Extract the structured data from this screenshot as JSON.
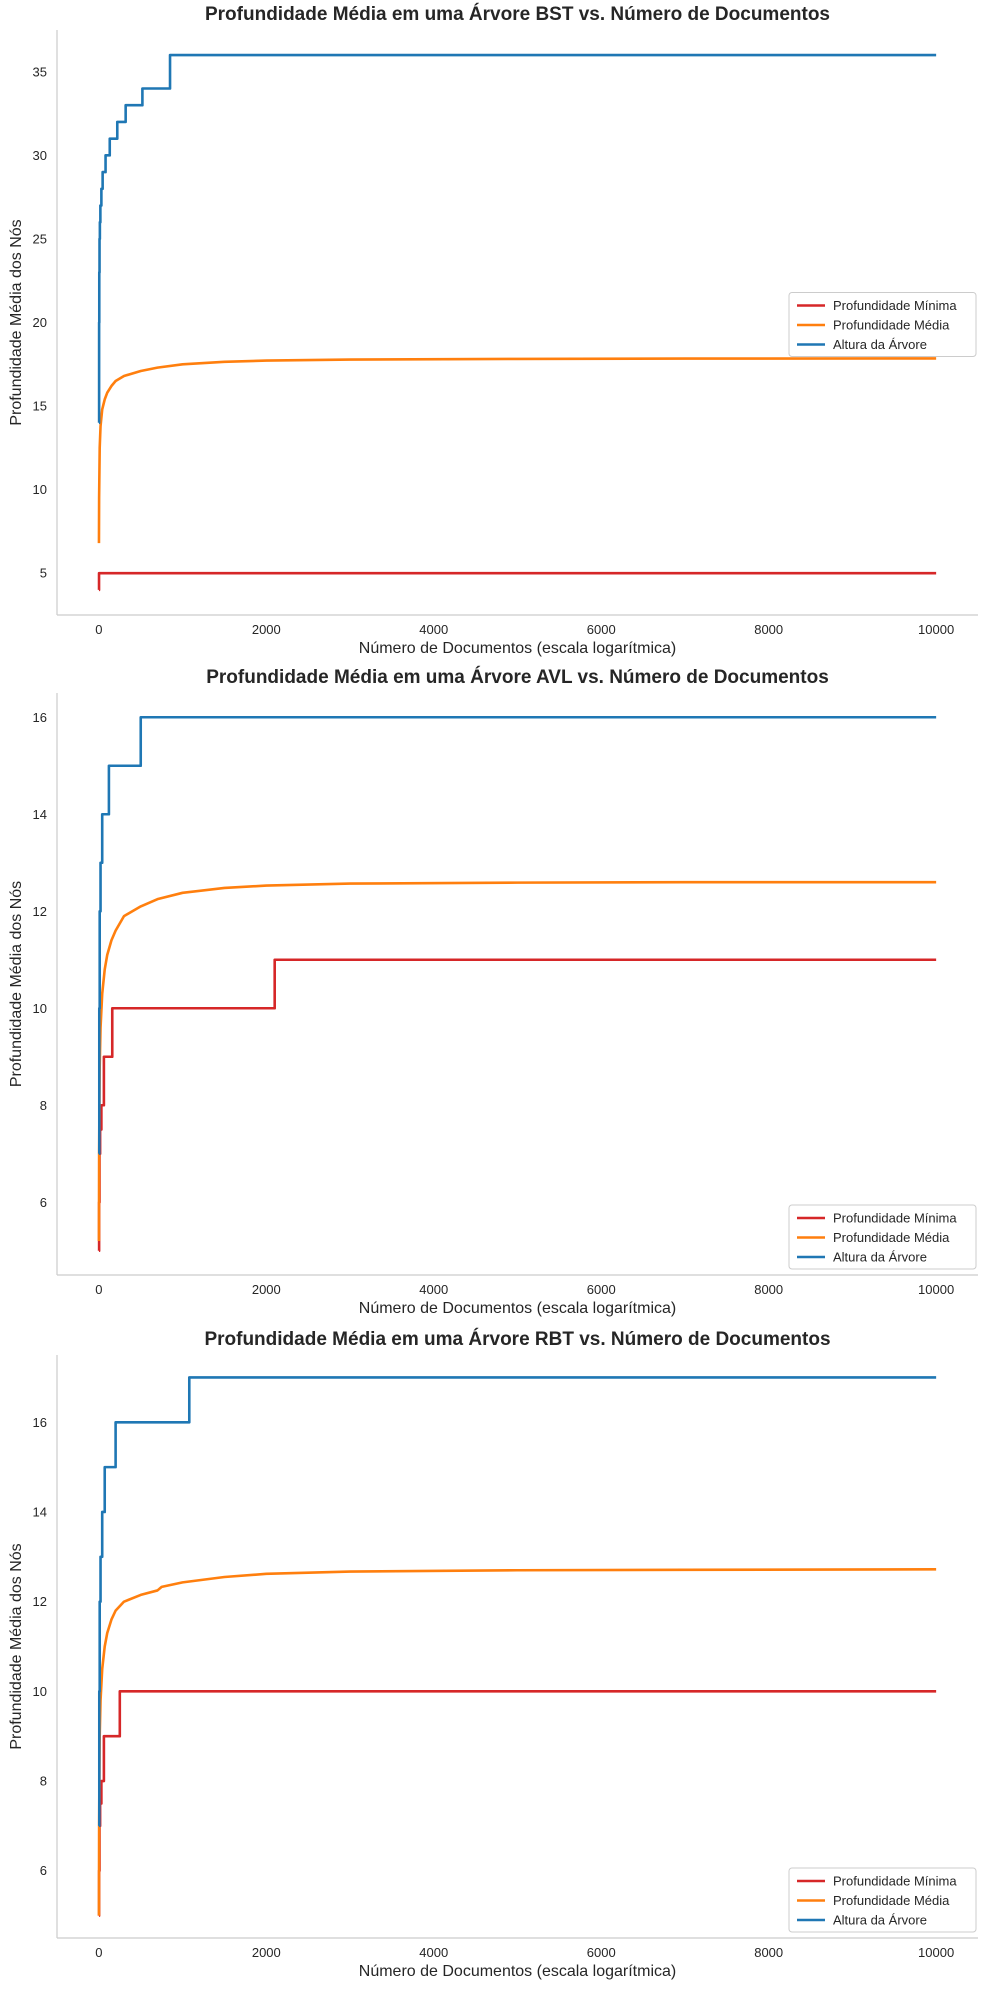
{
  "chart_data": [
    {
      "type": "line",
      "title": "Profundidade Média em uma Árvore BST vs. Número de Documentos",
      "xlabel": "Número de Documentos (escala logarítmica)",
      "ylabel": "Profundidade Média dos Nós",
      "xlim": [
        -500,
        10500
      ],
      "ylim": [
        2.5,
        37.5
      ],
      "xticks": [
        0,
        2000,
        4000,
        6000,
        8000,
        10000
      ],
      "yticks": [
        5,
        10,
        15,
        20,
        25,
        30,
        35
      ],
      "grid": false,
      "legend_position": "center-right",
      "series": [
        {
          "name": "Profundidade Mínima",
          "color": "#d62728",
          "step": true,
          "x": [
            1,
            2,
            10000
          ],
          "y": [
            4,
            5,
            5
          ]
        },
        {
          "name": "Profundidade Média",
          "color": "#ff7f0e",
          "step": false,
          "x": [
            1,
            3,
            10,
            20,
            40,
            70,
            100,
            150,
            200,
            300,
            500,
            700,
            1000,
            1500,
            2000,
            3000,
            5000,
            7000,
            10000
          ],
          "y": [
            6.8,
            9.5,
            12.5,
            13.8,
            14.8,
            15.4,
            15.8,
            16.2,
            16.5,
            16.8,
            17.1,
            17.3,
            17.5,
            17.65,
            17.72,
            17.78,
            17.82,
            17.84,
            17.85
          ]
        },
        {
          "name": "Altura da Árvore",
          "color": "#1f77b4",
          "step": true,
          "x": [
            1,
            3,
            5,
            8,
            12,
            18,
            30,
            45,
            80,
            130,
            220,
            320,
            520,
            850,
            1330,
            10000
          ],
          "y": [
            14,
            20,
            23,
            25,
            26,
            27,
            28,
            29,
            30,
            31,
            32,
            33,
            34,
            36,
            36,
            36
          ]
        }
      ]
    },
    {
      "type": "line",
      "title": "Profundidade Média em uma Árvore AVL vs. Número de Documentos",
      "xlabel": "Número de Documentos (escala logarítmica)",
      "ylabel": "Profundidade Média dos Nós",
      "xlim": [
        -500,
        10500
      ],
      "ylim": [
        4.5,
        16.5
      ],
      "xticks": [
        0,
        2000,
        4000,
        6000,
        8000,
        10000
      ],
      "yticks": [
        6,
        8,
        10,
        12,
        14,
        16
      ],
      "grid": false,
      "legend_position": "bottom-right",
      "series": [
        {
          "name": "Profundidade Mínima",
          "color": "#d62728",
          "step": true,
          "x": [
            1,
            3,
            8,
            15,
            30,
            60,
            160,
            2100,
            10000
          ],
          "y": [
            5,
            6,
            7,
            7.5,
            8,
            9,
            10,
            11,
            11
          ]
        },
        {
          "name": "Profundidade Média",
          "color": "#ff7f0e",
          "step": false,
          "x": [
            1,
            3,
            10,
            20,
            40,
            70,
            100,
            150,
            200,
            300,
            500,
            700,
            1000,
            1500,
            2000,
            3000,
            5000,
            7000,
            10000
          ],
          "y": [
            5.2,
            7.0,
            8.8,
            9.6,
            10.3,
            10.8,
            11.1,
            11.4,
            11.6,
            11.9,
            12.1,
            12.25,
            12.38,
            12.48,
            12.53,
            12.57,
            12.59,
            12.6,
            12.6
          ]
        },
        {
          "name": "Altura da Árvore",
          "color": "#1f77b4",
          "step": true,
          "x": [
            1,
            5,
            10,
            20,
            40,
            70,
            120,
            250,
            500,
            10000
          ],
          "y": [
            7,
            10,
            12,
            13,
            14,
            14,
            15,
            15,
            16,
            16
          ]
        }
      ]
    },
    {
      "type": "line",
      "title": "Profundidade Média em uma Árvore RBT vs. Número de Documentos",
      "xlabel": "Número de Documentos (escala logarítmica)",
      "ylabel": "Profundidade Média dos Nós",
      "xlim": [
        -500,
        10500
      ],
      "ylim": [
        4.5,
        17.5
      ],
      "xticks": [
        0,
        2000,
        4000,
        6000,
        8000,
        10000
      ],
      "yticks": [
        6,
        8,
        10,
        12,
        14,
        16
      ],
      "grid": false,
      "legend_position": "bottom-right",
      "series": [
        {
          "name": "Profundidade Mínima",
          "color": "#d62728",
          "step": true,
          "x": [
            1,
            3,
            8,
            15,
            30,
            60,
            250,
            10000
          ],
          "y": [
            5,
            6,
            7,
            7.5,
            8,
            9,
            10,
            10
          ]
        },
        {
          "name": "Profundidade Média",
          "color": "#ff7f0e",
          "step": false,
          "x": [
            1,
            3,
            10,
            20,
            40,
            70,
            100,
            150,
            200,
            300,
            500,
            700,
            750,
            1000,
            1500,
            2000,
            3000,
            5000,
            7000,
            10000
          ],
          "y": [
            5.0,
            7.0,
            9.0,
            9.8,
            10.5,
            11.0,
            11.3,
            11.6,
            11.8,
            12.0,
            12.15,
            12.25,
            12.33,
            12.43,
            12.55,
            12.62,
            12.67,
            12.7,
            12.71,
            12.72
          ]
        },
        {
          "name": "Altura da Árvore",
          "color": "#1f77b4",
          "step": true,
          "x": [
            1,
            5,
            10,
            20,
            40,
            70,
            120,
            200,
            1080,
            10000
          ],
          "y": [
            7,
            10,
            12,
            13,
            14,
            15,
            15,
            16,
            17,
            17
          ]
        }
      ]
    }
  ]
}
